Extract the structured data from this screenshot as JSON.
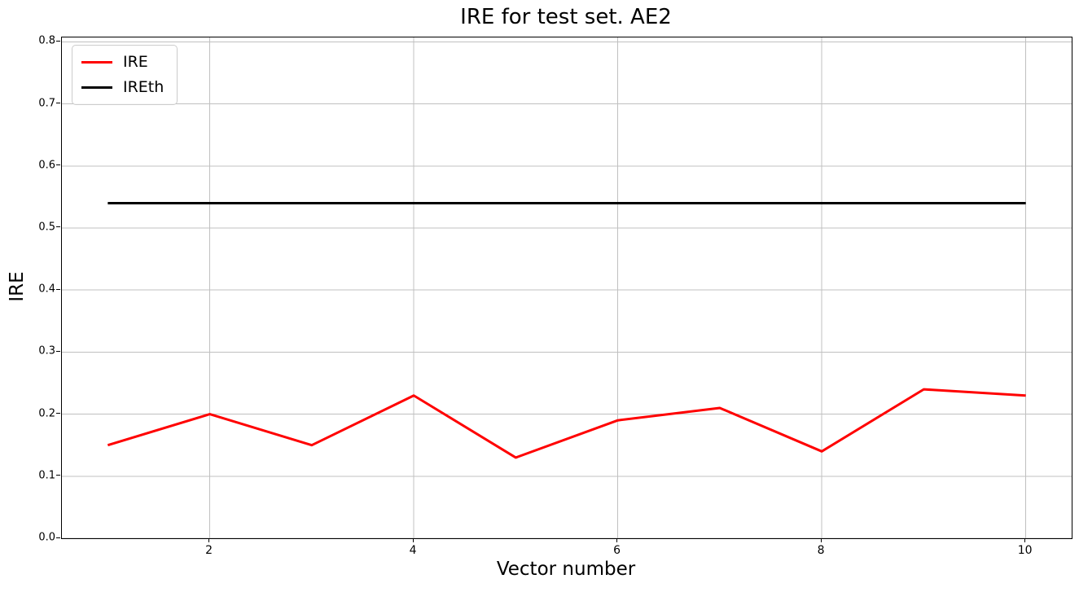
{
  "figure": {
    "background": "#ffffff",
    "spine_color": "#000000",
    "grid_color": "#c0c0c0"
  },
  "chart_data": {
    "type": "line",
    "title": "IRE for test set. AE2",
    "xlabel": "Vector number",
    "ylabel": "IRE",
    "x": [
      1,
      2,
      3,
      4,
      5,
      6,
      7,
      8,
      9,
      10
    ],
    "series": [
      {
        "name": "IRE",
        "color": "#ff0000",
        "linewidth": 3,
        "values": [
          0.15,
          0.2,
          0.15,
          0.23,
          0.13,
          0.19,
          0.21,
          0.14,
          0.24,
          0.23
        ]
      },
      {
        "name": "IREth",
        "color": "#000000",
        "linewidth": 3,
        "values": [
          0.54,
          0.54,
          0.54,
          0.54,
          0.54,
          0.54,
          0.54,
          0.54,
          0.54,
          0.54
        ]
      }
    ],
    "xlim": [
      0.55,
      10.45
    ],
    "ylim": [
      0.0,
      0.807
    ],
    "xticks": [
      2,
      4,
      6,
      8,
      10
    ],
    "xticklabels": [
      "2",
      "4",
      "6",
      "8",
      "10"
    ],
    "yticks": [
      0.0,
      0.1,
      0.2,
      0.3,
      0.4,
      0.5,
      0.6,
      0.7,
      0.8
    ],
    "yticklabels": [
      "0.0",
      "0.1",
      "0.2",
      "0.3",
      "0.4",
      "0.5",
      "0.6",
      "0.7",
      "0.8"
    ],
    "grid": true,
    "legend": {
      "position": "upper-left",
      "entries": [
        "IRE",
        "IREth"
      ]
    }
  }
}
